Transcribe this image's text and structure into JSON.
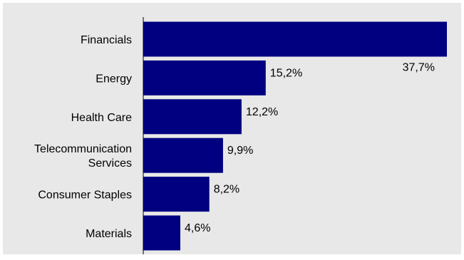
{
  "chart_data": {
    "type": "bar",
    "orientation": "horizontal",
    "categories": [
      [
        "Financials"
      ],
      [
        "Energy"
      ],
      [
        "Health Care"
      ],
      [
        "Telecommunication",
        "Services"
      ],
      [
        "Consumer Staples"
      ],
      [
        "Materials"
      ]
    ],
    "values": [
      37.7,
      15.2,
      12.2,
      9.9,
      8.2,
      4.6
    ],
    "data_labels": [
      "37,7%",
      "15,2%",
      "12,2%",
      "9,9%",
      "8,2%",
      "4,6%"
    ],
    "title": "",
    "xlabel": "",
    "ylabel": "",
    "xlim": [
      0,
      37.7
    ],
    "grid": false,
    "legend": "none"
  },
  "colors": {
    "background": "#ffffff",
    "plot_area": "#e8e8e8",
    "bar": "#000080",
    "axis": "#000000",
    "text": "#000000"
  }
}
